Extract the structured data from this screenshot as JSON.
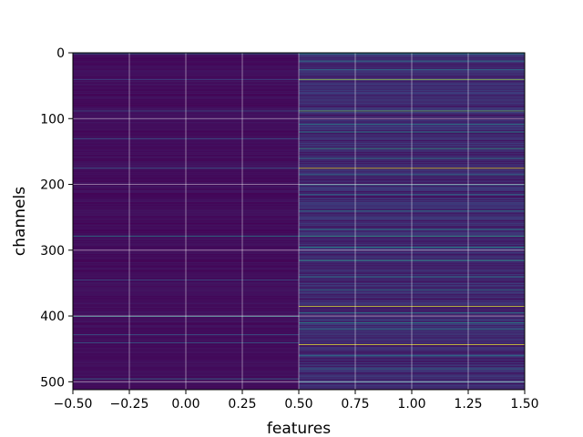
{
  "chart_data": {
    "type": "heatmap",
    "title": "",
    "xlabel": "features",
    "ylabel": "channels",
    "xlim": [
      -0.5,
      1.5
    ],
    "ylim": [
      512,
      0
    ],
    "y_inverted": true,
    "grid": true,
    "colormap": "viridis",
    "n_rows": 512,
    "columns": [
      0,
      1
    ],
    "xticks": [
      "−0.50",
      "−0.25",
      "0.00",
      "0.25",
      "0.50",
      "0.75",
      "1.00",
      "1.25",
      "1.50"
    ],
    "xtick_values": [
      -0.5,
      -0.25,
      0.0,
      0.25,
      0.5,
      0.75,
      1.0,
      1.25,
      1.5
    ],
    "yticks": [
      "0",
      "100",
      "200",
      "300",
      "400",
      "500"
    ],
    "ytick_values": [
      0,
      100,
      200,
      300,
      400,
      500
    ],
    "column_0": {
      "base_level": 0.04,
      "bright_rows": [
        {
          "row": 1,
          "level": 0.35
        },
        {
          "row": 40,
          "level": 0.25
        },
        {
          "row": 88,
          "level": 0.3
        },
        {
          "row": 130,
          "level": 0.28
        },
        {
          "row": 175,
          "level": 0.3
        },
        {
          "row": 278,
          "level": 0.45
        },
        {
          "row": 345,
          "level": 0.3
        },
        {
          "row": 400,
          "level": 0.5
        },
        {
          "row": 428,
          "level": 0.3
        },
        {
          "row": 440,
          "level": 0.32
        },
        {
          "row": 495,
          "level": 0.35
        }
      ]
    },
    "column_1": {
      "base_level": 0.12,
      "bright_rows": [
        {
          "row": 1,
          "level": 0.5
        },
        {
          "row": 12,
          "level": 0.45
        },
        {
          "row": 25,
          "level": 0.4
        },
        {
          "row": 40,
          "level": 0.85
        },
        {
          "row": 88,
          "level": 0.75
        },
        {
          "row": 108,
          "level": 0.45
        },
        {
          "row": 120,
          "level": 0.5
        },
        {
          "row": 145,
          "level": 0.55
        },
        {
          "row": 160,
          "level": 0.45
        },
        {
          "row": 175,
          "level": 0.95
        },
        {
          "row": 185,
          "level": 0.45
        },
        {
          "row": 200,
          "level": 0.5
        },
        {
          "row": 215,
          "level": 0.4
        },
        {
          "row": 240,
          "level": 0.45
        },
        {
          "row": 268,
          "level": 0.5
        },
        {
          "row": 278,
          "level": 0.55
        },
        {
          "row": 295,
          "level": 0.5
        },
        {
          "row": 315,
          "level": 0.55
        },
        {
          "row": 340,
          "level": 0.45
        },
        {
          "row": 360,
          "level": 0.45
        },
        {
          "row": 385,
          "level": 0.95
        },
        {
          "row": 395,
          "level": 0.45
        },
        {
          "row": 410,
          "level": 0.5
        },
        {
          "row": 420,
          "level": 0.45
        },
        {
          "row": 443,
          "level": 0.97
        },
        {
          "row": 460,
          "level": 0.45
        },
        {
          "row": 480,
          "level": 0.4
        },
        {
          "row": 500,
          "level": 0.45
        }
      ]
    }
  }
}
